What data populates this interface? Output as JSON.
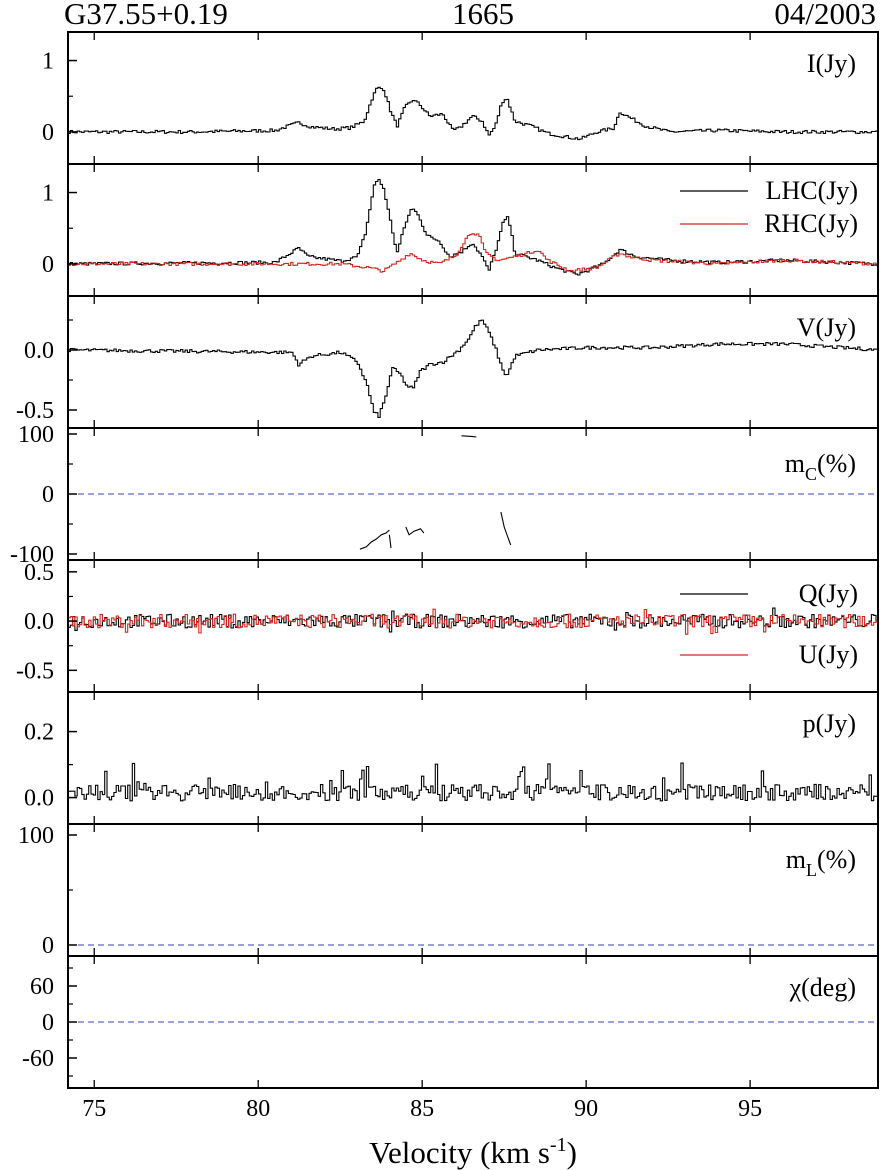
{
  "header": {
    "source": "G37.55+0.19",
    "frequency": "1665",
    "date": "04/2003"
  },
  "x_axis": {
    "title_main": "Velocity (km s",
    "title_sup": "-1",
    "title_close": ")",
    "ticks": [
      75,
      80,
      85,
      90,
      95
    ],
    "range": [
      74.2,
      98.9
    ]
  },
  "colors": {
    "black": "#000000",
    "red": "#d0281e",
    "reference": "#3344aa"
  },
  "chart_data": [
    {
      "type": "line",
      "id": "I",
      "label": "I(Jy)",
      "ylim": [
        -0.45,
        1.4
      ],
      "yticks": [
        {
          "v": 0,
          "t": "0"
        },
        {
          "v": 1,
          "t": "1"
        }
      ],
      "minor_yticks": [
        0.5
      ],
      "series": [
        {
          "color": "#000000",
          "points": [
            [
              74.2,
              0
            ],
            [
              78,
              0
            ],
            [
              80.5,
              0.02
            ],
            [
              81.2,
              0.13
            ],
            [
              81.6,
              0.07
            ],
            [
              82.3,
              0.04
            ],
            [
              82.8,
              0.06
            ],
            [
              83.2,
              0.15
            ],
            [
              83.45,
              0.48
            ],
            [
              83.6,
              0.62
            ],
            [
              83.8,
              0.6
            ],
            [
              84.0,
              0.3
            ],
            [
              84.2,
              0.08
            ],
            [
              84.45,
              0.35
            ],
            [
              84.7,
              0.45
            ],
            [
              84.9,
              0.38
            ],
            [
              85.2,
              0.22
            ],
            [
              85.6,
              0.25
            ],
            [
              85.9,
              0.02
            ],
            [
              86.1,
              0.05
            ],
            [
              86.5,
              0.22
            ],
            [
              86.8,
              0.15
            ],
            [
              87.0,
              -0.05
            ],
            [
              87.2,
              0.08
            ],
            [
              87.4,
              0.42
            ],
            [
              87.55,
              0.48
            ],
            [
              87.8,
              0.15
            ],
            [
              88.3,
              0.08
            ],
            [
              88.8,
              -0.02
            ],
            [
              89.5,
              -0.08
            ],
            [
              89.8,
              -0.1
            ],
            [
              90.3,
              0
            ],
            [
              90.8,
              0.05
            ],
            [
              91.0,
              0.28
            ],
            [
              91.3,
              0.2
            ],
            [
              91.8,
              0.08
            ],
            [
              92.5,
              0
            ],
            [
              94,
              0.02
            ],
            [
              96,
              0
            ],
            [
              98.9,
              0
            ]
          ]
        }
      ]
    },
    {
      "type": "line",
      "id": "LR",
      "ylim": [
        -0.45,
        1.4
      ],
      "yticks": [
        {
          "v": 0,
          "t": "0"
        },
        {
          "v": 1,
          "t": "1"
        }
      ],
      "minor_yticks": [
        0.5
      ],
      "legend": [
        {
          "label": "LHC(Jy)",
          "color": "#000000"
        },
        {
          "label": "RHC(Jy)",
          "color": "#d0281e"
        }
      ],
      "series": [
        {
          "name": "LHC(Jy)",
          "color": "#000000",
          "points": [
            [
              74.2,
              0
            ],
            [
              80.5,
              0.02
            ],
            [
              81.2,
              0.22
            ],
            [
              81.5,
              0.1
            ],
            [
              82.5,
              0.04
            ],
            [
              83.0,
              0.1
            ],
            [
              83.25,
              0.45
            ],
            [
              83.5,
              1.1
            ],
            [
              83.65,
              1.18
            ],
            [
              83.8,
              1.05
            ],
            [
              84.0,
              0.6
            ],
            [
              84.2,
              0.15
            ],
            [
              84.45,
              0.55
            ],
            [
              84.65,
              0.78
            ],
            [
              84.85,
              0.7
            ],
            [
              85.1,
              0.4
            ],
            [
              85.5,
              0.32
            ],
            [
              85.8,
              0.1
            ],
            [
              86.2,
              0.18
            ],
            [
              86.5,
              0.3
            ],
            [
              86.8,
              0.1
            ],
            [
              87.0,
              -0.1
            ],
            [
              87.25,
              0.25
            ],
            [
              87.45,
              0.6
            ],
            [
              87.6,
              0.65
            ],
            [
              87.8,
              0.15
            ],
            [
              88.5,
              0.05
            ],
            [
              89.0,
              -0.05
            ],
            [
              89.7,
              -0.15
            ],
            [
              90.5,
              0
            ],
            [
              91.0,
              0.2
            ],
            [
              91.5,
              0.1
            ],
            [
              92.5,
              0.05
            ],
            [
              94,
              0.02
            ],
            [
              96,
              0.05
            ],
            [
              98.9,
              0
            ]
          ]
        },
        {
          "name": "RHC(Jy)",
          "color": "#d0281e",
          "points": [
            [
              74.2,
              0
            ],
            [
              81,
              0
            ],
            [
              82.5,
              0
            ],
            [
              83.3,
              -0.05
            ],
            [
              83.8,
              -0.1
            ],
            [
              84.3,
              0.05
            ],
            [
              84.6,
              0.15
            ],
            [
              85.0,
              0.05
            ],
            [
              85.5,
              0
            ],
            [
              86.0,
              0.12
            ],
            [
              86.3,
              0.35
            ],
            [
              86.5,
              0.45
            ],
            [
              86.7,
              0.4
            ],
            [
              86.9,
              0.15
            ],
            [
              87.3,
              0.05
            ],
            [
              87.6,
              0.08
            ],
            [
              88.2,
              0.15
            ],
            [
              88.5,
              0.2
            ],
            [
              88.8,
              0.05
            ],
            [
              89.5,
              -0.1
            ],
            [
              90.3,
              -0.05
            ],
            [
              91.0,
              0.15
            ],
            [
              91.3,
              0.1
            ],
            [
              92,
              0.05
            ],
            [
              94,
              0
            ],
            [
              96,
              0.05
            ],
            [
              98.9,
              0
            ]
          ]
        }
      ]
    },
    {
      "type": "line",
      "id": "V",
      "label": "V(Jy)",
      "ylim": [
        -0.65,
        0.45
      ],
      "yticks": [
        {
          "v": 0,
          "t": "0.0"
        },
        {
          "v": -0.5,
          "t": "-0.5"
        }
      ],
      "minor_yticks": [
        -0.25,
        0.25
      ],
      "series": [
        {
          "color": "#000000",
          "points": [
            [
              74.2,
              0
            ],
            [
              81,
              -0.02
            ],
            [
              81.2,
              -0.12
            ],
            [
              81.6,
              -0.05
            ],
            [
              82.5,
              -0.02
            ],
            [
              83.0,
              -0.1
            ],
            [
              83.3,
              -0.3
            ],
            [
              83.5,
              -0.52
            ],
            [
              83.65,
              -0.55
            ],
            [
              83.85,
              -0.4
            ],
            [
              84.05,
              -0.15
            ],
            [
              84.3,
              -0.2
            ],
            [
              84.5,
              -0.3
            ],
            [
              84.7,
              -0.32
            ],
            [
              84.9,
              -0.18
            ],
            [
              85.2,
              -0.12
            ],
            [
              85.6,
              -0.1
            ],
            [
              86.1,
              0
            ],
            [
              86.4,
              0.1
            ],
            [
              86.6,
              0.2
            ],
            [
              86.8,
              0.25
            ],
            [
              87.0,
              0.15
            ],
            [
              87.2,
              0.02
            ],
            [
              87.4,
              -0.15
            ],
            [
              87.55,
              -0.22
            ],
            [
              87.8,
              -0.05
            ],
            [
              88.5,
              0
            ],
            [
              90,
              0.02
            ],
            [
              92,
              0.02
            ],
            [
              94,
              0.05
            ],
            [
              96,
              0.05
            ],
            [
              98.9,
              0
            ]
          ]
        }
      ]
    },
    {
      "type": "line",
      "id": "mC",
      "label_main": "m",
      "label_sub": "C",
      "label_unit": "(%)",
      "ylim": [
        -110,
        110
      ],
      "reference_line": 0,
      "yticks": [
        {
          "v": 100,
          "t": "100"
        },
        {
          "v": 0,
          "t": "0"
        },
        {
          "v": -100,
          "t": "-100"
        }
      ],
      "minor_yticks": [
        -50,
        50
      ],
      "segments": [
        {
          "color": "#000000",
          "points": [
            [
              83.1,
              -92
            ],
            [
              83.3,
              -88
            ],
            [
              83.45,
              -80
            ],
            [
              83.6,
              -75
            ],
            [
              83.75,
              -68
            ],
            [
              83.9,
              -65
            ],
            [
              84.0,
              -60
            ]
          ]
        },
        {
          "color": "#000000",
          "points": [
            [
              84.0,
              -68
            ],
            [
              84.05,
              -90
            ]
          ]
        },
        {
          "color": "#000000",
          "points": [
            [
              84.5,
              -55
            ],
            [
              84.6,
              -68
            ],
            [
              84.75,
              -62
            ],
            [
              84.95,
              -58
            ],
            [
              85.05,
              -65
            ]
          ]
        },
        {
          "color": "#000000",
          "points": [
            [
              86.2,
              97
            ],
            [
              86.5,
              96
            ],
            [
              86.65,
              95
            ]
          ]
        },
        {
          "color": "#000000",
          "points": [
            [
              87.4,
              -30
            ],
            [
              87.5,
              -55
            ],
            [
              87.6,
              -70
            ],
            [
              87.7,
              -85
            ]
          ]
        }
      ]
    },
    {
      "type": "line",
      "id": "QU",
      "ylim": [
        -0.72,
        0.62
      ],
      "yticks": [
        {
          "v": 0.5,
          "t": "0.5"
        },
        {
          "v": 0,
          "t": "0.0"
        },
        {
          "v": -0.5,
          "t": "-0.5"
        }
      ],
      "minor_yticks": [
        -0.25,
        0.25
      ],
      "legend": [
        {
          "label": "Q(Jy)",
          "color": "#000000"
        },
        {
          "label": "U(Jy)",
          "color": "#d0281e"
        }
      ],
      "series": [
        {
          "name": "Q(Jy)",
          "color": "#000000",
          "noise": true,
          "amp": 0.07
        },
        {
          "name": "U(Jy)",
          "color": "#d0281e",
          "noise": true,
          "amp": 0.07
        }
      ]
    },
    {
      "type": "line",
      "id": "p",
      "label": "p(Jy)",
      "ylim": [
        -0.08,
        0.32
      ],
      "yticks": [
        {
          "v": 0.2,
          "t": "0.2"
        },
        {
          "v": 0,
          "t": "0.0"
        }
      ],
      "minor_yticks": [
        0.1
      ],
      "series": [
        {
          "color": "#000000",
          "noise": true,
          "amp": 0.05,
          "positive": true
        }
      ]
    },
    {
      "type": "line",
      "id": "mL",
      "label_main": "m",
      "label_sub": "L",
      "label_unit": "(%)",
      "ylim": [
        -10,
        110
      ],
      "reference_line": 0,
      "yticks": [
        {
          "v": 100,
          "t": "100"
        },
        {
          "v": 0,
          "t": "0"
        }
      ],
      "minor_yticks": [
        50
      ]
    },
    {
      "type": "line",
      "id": "chi",
      "label": "χ(deg)",
      "ylim": [
        -110,
        110
      ],
      "reference_line": 0,
      "yticks": [
        {
          "v": 60,
          "t": "60"
        },
        {
          "v": 0,
          "t": "0"
        },
        {
          "v": -60,
          "t": "-60"
        }
      ],
      "minor_yticks": [
        -90,
        -30,
        30,
        90
      ]
    }
  ]
}
